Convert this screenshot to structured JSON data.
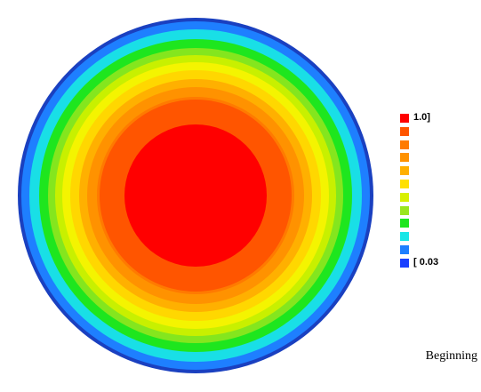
{
  "contour_plot": {
    "shape": "disk",
    "levels": [
      {
        "color": "#1a40c0"
      },
      {
        "color": "#1e7fff"
      },
      {
        "color": "#19dfe6"
      },
      {
        "color": "#1ee61e"
      },
      {
        "color": "#84e61e"
      },
      {
        "color": "#c8f000"
      },
      {
        "color": "#f4f400"
      },
      {
        "color": "#ffd700"
      },
      {
        "color": "#ffb000"
      },
      {
        "color": "#ff9200"
      },
      {
        "color": "#ff7a00"
      },
      {
        "color": "#ff5500"
      },
      {
        "color": "#ff0000"
      }
    ]
  },
  "legend": {
    "entries": [
      {
        "color": "#ff0000",
        "label": "1.0]"
      },
      {
        "color": "#ff5500",
        "label": ""
      },
      {
        "color": "#ff7a00",
        "label": ""
      },
      {
        "color": "#ff9200",
        "label": ""
      },
      {
        "color": "#ffb000",
        "label": ""
      },
      {
        "color": "#ffe000",
        "label": ""
      },
      {
        "color": "#d8f000",
        "label": ""
      },
      {
        "color": "#9ae61e",
        "label": ""
      },
      {
        "color": "#1ee61e",
        "label": ""
      },
      {
        "color": "#19e6e6",
        "label": ""
      },
      {
        "color": "#1e7fff",
        "label": ""
      },
      {
        "color": "#1a40ff",
        "label": "[ 0.03"
      }
    ]
  },
  "status": {
    "label": "Beginning"
  }
}
